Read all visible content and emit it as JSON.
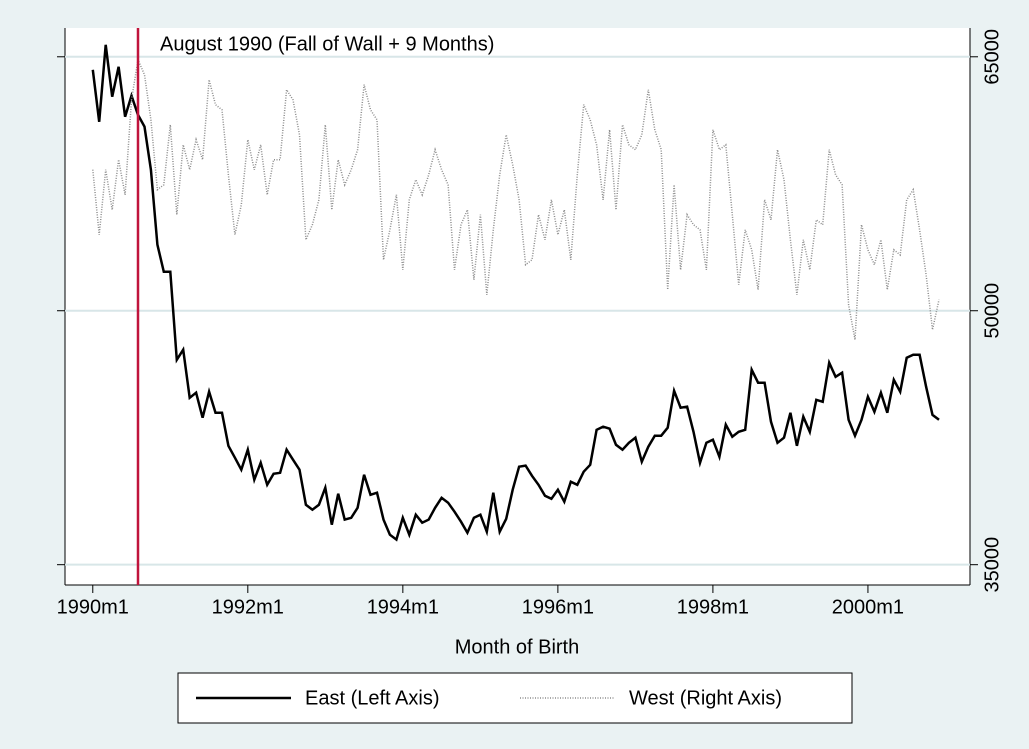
{
  "chart_data": {
    "type": "line",
    "xlabel": "Month of Birth",
    "annotation": "August 1990 (Fall of Wall + 9 Months)",
    "xline": 367,
    "xline_color": "#c0143c",
    "x": [
      360,
      361,
      362,
      363,
      364,
      365,
      366,
      367,
      368,
      369,
      370,
      371,
      372,
      373,
      374,
      375,
      376,
      377,
      378,
      379,
      380,
      381,
      382,
      383,
      384,
      385,
      386,
      387,
      388,
      389,
      390,
      391,
      392,
      393,
      394,
      395,
      396,
      397,
      398,
      399,
      400,
      401,
      402,
      403,
      404,
      405,
      406,
      407,
      408,
      409,
      410,
      411,
      412,
      413,
      414,
      415,
      416,
      417,
      418,
      419,
      420,
      421,
      422,
      423,
      424,
      425,
      426,
      427,
      428,
      429,
      430,
      431,
      432,
      433,
      434,
      435,
      436,
      437,
      438,
      439,
      440,
      441,
      442,
      443,
      444,
      445,
      446,
      447,
      448,
      449,
      450,
      451,
      452,
      453,
      454,
      455,
      456,
      457,
      458,
      459,
      460,
      461,
      462,
      463,
      464,
      465,
      466,
      467,
      468,
      469,
      470,
      471,
      472,
      473,
      474,
      475,
      476,
      477,
      478,
      479,
      480,
      481,
      482,
      483,
      484,
      485,
      486,
      487,
      488,
      489,
      490,
      491
    ],
    "series": [
      {
        "name": "East (Left Axis)",
        "color": "#000000",
        "axis": "y",
        "values": [
          64230,
          61160,
          65710,
          62640,
          64410,
          61460,
          62700,
          61570,
          60870,
          58330,
          53900,
          52300,
          52300,
          47100,
          47700,
          44860,
          45160,
          43680,
          45220,
          43970,
          43970,
          42020,
          41320,
          40610,
          41790,
          40020,
          41020,
          39720,
          40370,
          40430,
          41790,
          41200,
          40610,
          38540,
          38250,
          38540,
          39550,
          37360,
          39190,
          37660,
          37770,
          38360,
          40310,
          39130,
          39250,
          37660,
          36770,
          36480,
          37770,
          36770,
          37950,
          37480,
          37660,
          38360,
          38950,
          38660,
          38130,
          37540,
          36890,
          37770,
          37950,
          36950,
          39250,
          36950,
          37710,
          39430,
          40790,
          40850,
          40250,
          39720,
          39070,
          38890,
          39430,
          38720,
          39900,
          39720,
          40490,
          40900,
          42970,
          43150,
          43030,
          42080,
          41790,
          42200,
          42500,
          41080,
          41970,
          42620,
          42620,
          43090,
          45270,
          44270,
          44330,
          42850,
          41020,
          42200,
          42380,
          41370,
          43270,
          42560,
          42850,
          42970,
          46510,
          45750,
          45750,
          43440,
          42200,
          42500,
          43970,
          42020,
          43740,
          42850,
          44740,
          44620,
          46930,
          46100,
          46340,
          43560,
          42620,
          43560,
          44920,
          44030,
          45160,
          43970,
          45920,
          45220,
          47220,
          47400,
          47400,
          45510,
          43850,
          43560
        ]
      },
      {
        "name": "West (Right Axis)",
        "color": "#8c8c8c",
        "axis": "y2",
        "values": [
          58330,
          54490,
          58330,
          55960,
          58920,
          56850,
          62460,
          64820,
          63940,
          61280,
          57150,
          57440,
          60980,
          55670,
          59800,
          58330,
          60100,
          58920,
          63640,
          62170,
          61870,
          58030,
          54490,
          56260,
          60100,
          58330,
          59800,
          56850,
          58920,
          58920,
          63050,
          62460,
          60390,
          54190,
          55080,
          56550,
          60980,
          55960,
          58920,
          57440,
          58330,
          59510,
          63350,
          61870,
          61280,
          53010,
          54780,
          56850,
          52420,
          56550,
          57740,
          56850,
          58030,
          59510,
          58330,
          57440,
          52420,
          55080,
          55960,
          51830,
          55670,
          50940,
          54780,
          58030,
          60390,
          58620,
          56550,
          52720,
          53010,
          55670,
          54190,
          56550,
          54490,
          55960,
          53010,
          58030,
          62170,
          61280,
          59800,
          56550,
          60690,
          55960,
          60980,
          59800,
          59510,
          60390,
          63050,
          60690,
          59510,
          51240,
          57440,
          52420,
          55670,
          55080,
          54780,
          52420,
          60690,
          59510,
          59800,
          55670,
          51540,
          54780,
          53600,
          51240,
          56550,
          55370,
          59510,
          57740,
          54190,
          50940,
          54190,
          52420,
          55370,
          55080,
          59510,
          58030,
          57440,
          50350,
          48290,
          55080,
          53600,
          52720,
          54190,
          51240,
          53600,
          53300,
          56550,
          57150,
          54780,
          52130,
          48880,
          50650
        ]
      }
    ],
    "xlim": [
      355.7,
      495.8
    ],
    "xticks": [
      {
        "value": 360,
        "label": "1990m1"
      },
      {
        "value": 384,
        "label": "1992m1"
      },
      {
        "value": 408,
        "label": "1994m1"
      },
      {
        "value": 432,
        "label": "1996m1"
      },
      {
        "value": 456,
        "label": "1998m1"
      },
      {
        "value": 480,
        "label": "2000m1"
      }
    ],
    "ylim": [
      33800,
      66700
    ],
    "y2lim": [
      33800,
      66700
    ],
    "y2ticks": [
      35000,
      50000,
      65000
    ],
    "grid": true,
    "legend": "bottom"
  }
}
